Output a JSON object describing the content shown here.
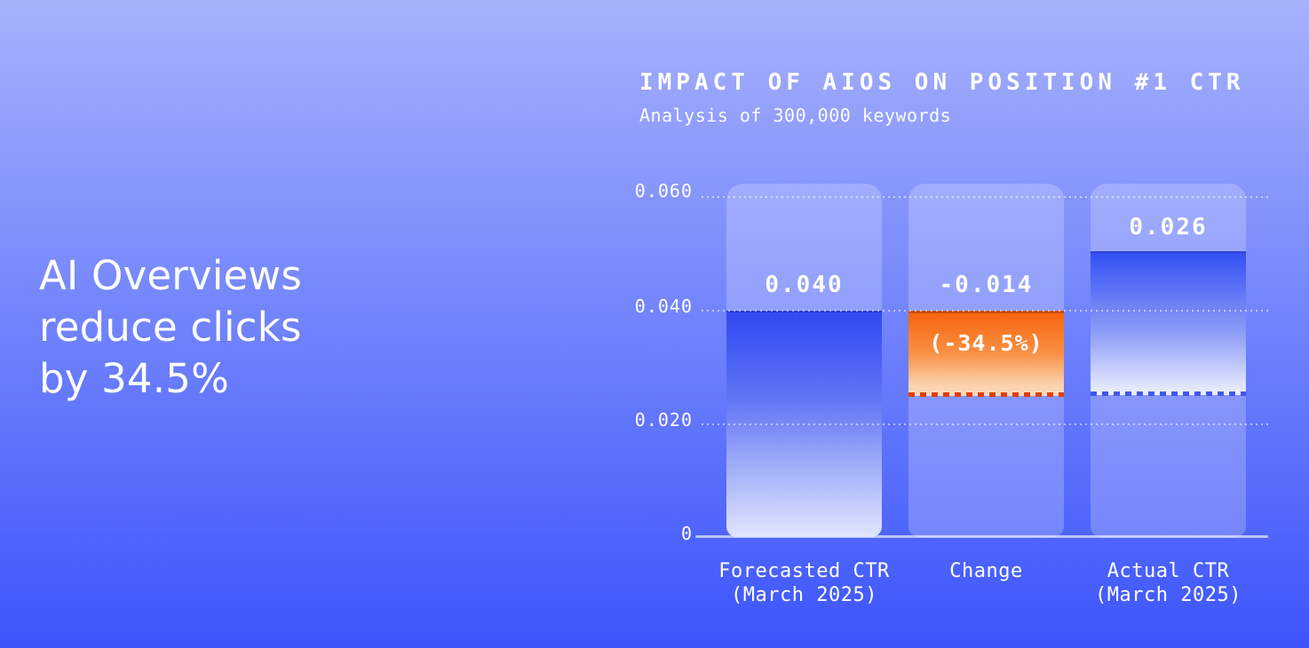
{
  "headline": {
    "lines": [
      "AI Overviews",
      "reduce clicks",
      "by 34.5%"
    ]
  },
  "chart": {
    "title": "IMPACT OF AIOS ON POSITION #1 CTR",
    "subtitle": "Analysis of 300,000 keywords",
    "y_axis": {
      "ticks": [
        "0.060",
        "0.040",
        "0.020",
        "0"
      ]
    },
    "bars": [
      {
        "value_label": "0.040",
        "pct_label": "",
        "label": "Forecasted CTR",
        "label2": "(March 2025)"
      },
      {
        "value_label": "-0.014",
        "pct_label": "(-34.5%)",
        "label": "Change",
        "label2": ""
      },
      {
        "value_label": "0.026",
        "pct_label": "",
        "label": "Actual CTR",
        "label2": "(March 2025)"
      }
    ]
  },
  "colors": {
    "background_top": "#a6b1fb",
    "background_bottom": "#3c55fc",
    "bar_blue": "#2f49f2",
    "bar_orange": "#f8650e",
    "dashed_red": "#e33d0a",
    "dashed_blue": "#4156ee",
    "track": "rgba(255,255,255,0.22)",
    "text": "#ffffff"
  },
  "chart_data": {
    "type": "bar",
    "subtype": "waterfall",
    "title": "IMPACT OF AIOS ON POSITION #1 CTR",
    "subtitle": "Analysis of 300,000 keywords",
    "categories": [
      "Forecasted CTR (March 2025)",
      "Change",
      "Actual CTR (March 2025)"
    ],
    "values": [
      0.04,
      -0.014,
      0.026
    ],
    "bar_data_labels": [
      "0.040",
      "-0.014",
      "0.026"
    ],
    "bar_annotations": [
      null,
      "(-34.5%)",
      null
    ],
    "xlabel": "",
    "ylabel": "",
    "ylim": [
      0,
      0.06
    ],
    "yticks": [
      0,
      0.02,
      0.04,
      0.06
    ],
    "ytick_labels": [
      "0",
      "0.020",
      "0.040",
      "0.060"
    ],
    "grid": "horizontal-dotted",
    "legend": "none",
    "notes": "Change bar drawn in orange from 0.040 down to 0.026 with red dashed line at 0.026; Actual CTR bar marked with blue dashed line at its value 0.026; full-height light tracks behind each bar."
  }
}
